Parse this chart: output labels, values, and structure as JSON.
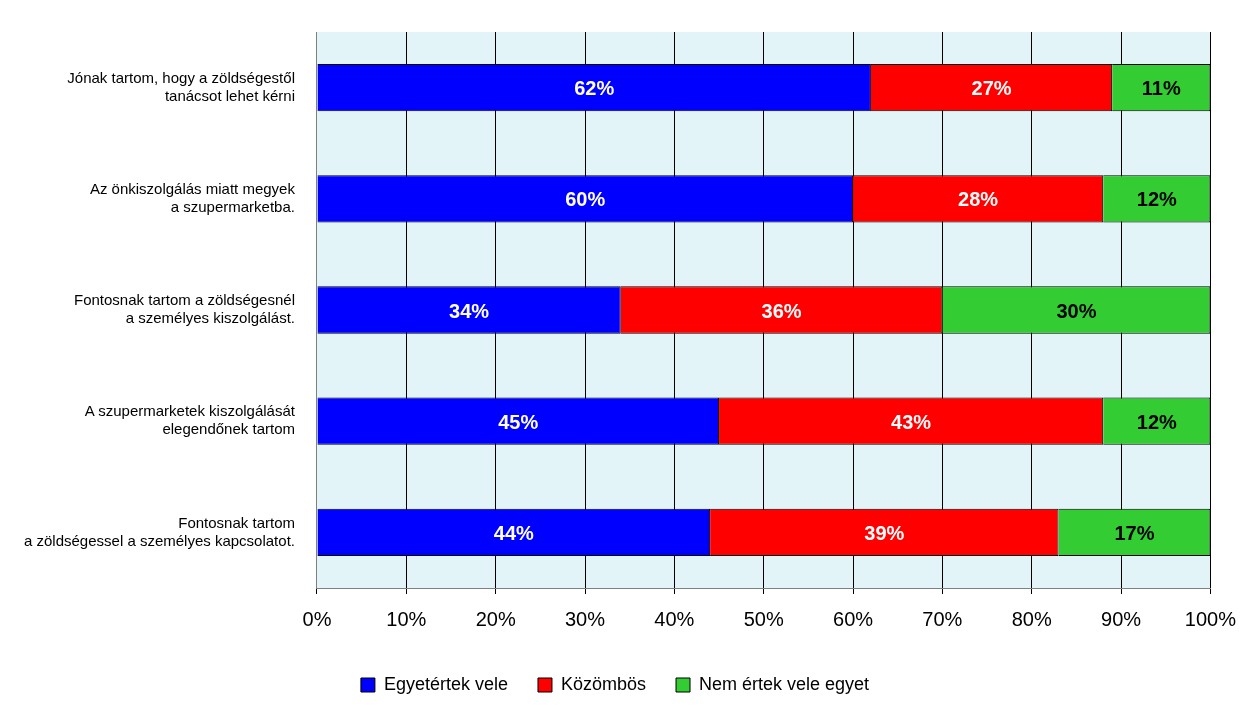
{
  "chart_data": {
    "type": "bar",
    "orientation": "horizontal",
    "stacked": true,
    "categories": [
      "Jónak tartom, hogy a zöldségestől\ntanácsot lehet kérni",
      "Az önkiszolgálás miatt megyek\na szupermarketba.",
      "Fontosnak tartom a zöldségesnél\na személyes kiszolgálást.",
      "A szupermarketek kiszolgálását\nelegendőnek tartom",
      "Fontosnak tartom\na zöldségessel a személyes kapcsolatot."
    ],
    "series": [
      {
        "name": "Egyetértek vele",
        "color": "#0000ff",
        "values": [
          62,
          60,
          34,
          45,
          44
        ],
        "value_labels": [
          "62%",
          "60%",
          "34%",
          "45%",
          "44%"
        ]
      },
      {
        "name": "Közömbös",
        "color": "#ff0000",
        "values": [
          27,
          28,
          36,
          43,
          39
        ],
        "value_labels": [
          "27%",
          "28%",
          "36%",
          "43%",
          "39%"
        ]
      },
      {
        "name": "Nem értek vele egyet",
        "color": "#33cc33",
        "values": [
          11,
          12,
          30,
          12,
          17
        ],
        "value_labels": [
          "11%",
          "12%",
          "30%",
          "12%",
          "17%"
        ]
      }
    ],
    "xlim": [
      0,
      100
    ],
    "xticks": [
      {
        "value": 0,
        "label": "0%"
      },
      {
        "value": 10,
        "label": "10%"
      },
      {
        "value": 20,
        "label": "20%"
      },
      {
        "value": 30,
        "label": "30%"
      },
      {
        "value": 40,
        "label": "40%"
      },
      {
        "value": 50,
        "label": "50%"
      },
      {
        "value": 60,
        "label": "60%"
      },
      {
        "value": 70,
        "label": "70%"
      },
      {
        "value": 80,
        "label": "80%"
      },
      {
        "value": 90,
        "label": "90%"
      },
      {
        "value": 100,
        "label": "100%"
      }
    ],
    "grid": "x",
    "legend": "bottom"
  }
}
